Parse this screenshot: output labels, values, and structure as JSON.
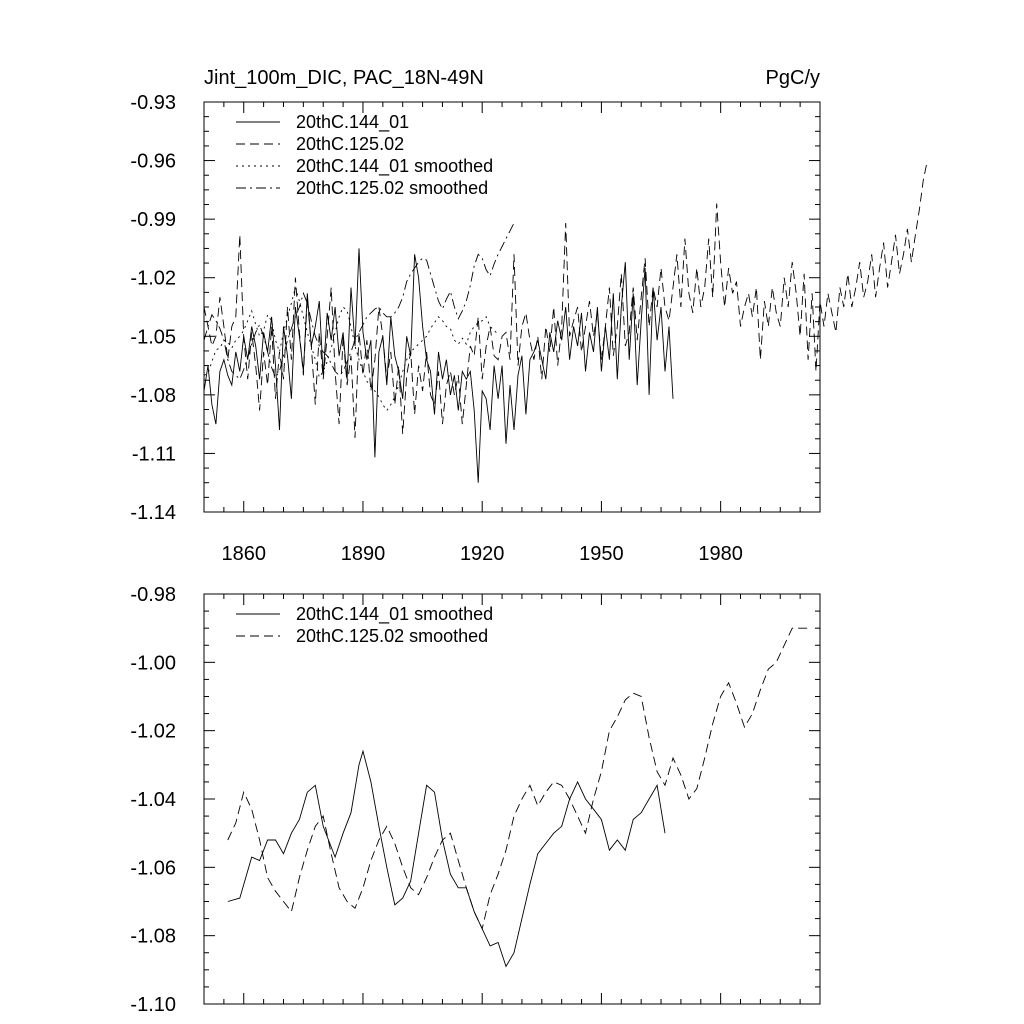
{
  "chart_data": [
    {
      "type": "line",
      "title_left": "Jint_100m_DIC, PAC_18N-49N",
      "title_right": "PgC/y",
      "xlim": [
        1850,
        2005
      ],
      "ylim": [
        -1.14,
        -0.93
      ],
      "x_ticks": [
        1860,
        1890,
        1920,
        1950,
        1980
      ],
      "x_tick_labels": [
        "1860",
        "1890",
        "1920",
        "1950",
        "1980"
      ],
      "y_ticks": [
        -0.93,
        -0.96,
        -0.99,
        -1.02,
        -1.05,
        -1.08,
        -1.11,
        -1.14
      ],
      "y_tick_labels": [
        "-0.93",
        "-0.96",
        "-0.99",
        "-1.02",
        "-1.05",
        "-1.08",
        "-1.11",
        "-1.14"
      ],
      "legend_location": "top-left",
      "series": [
        {
          "name": "20thC.144_01",
          "style": "solid",
          "x_start": 1850,
          "values": [
            -1.078,
            -1.065,
            -1.085,
            -1.095,
            -1.068,
            -1.062,
            -1.07,
            -1.075,
            -1.058,
            -1.068,
            -1.05,
            -1.062,
            -1.045,
            -1.055,
            -1.072,
            -1.048,
            -1.058,
            -1.04,
            -1.065,
            -1.098,
            -1.045,
            -1.06,
            -1.082,
            -1.035,
            -1.05,
            -1.068,
            -1.028,
            -1.055,
            -1.045,
            -1.032,
            -1.07,
            -1.038,
            -1.052,
            -1.035,
            -1.06,
            -1.048,
            -1.072,
            -1.025,
            -1.055,
            -1.005,
            -1.048,
            -1.062,
            -1.052,
            -1.112,
            -1.058,
            -1.05,
            -1.075,
            -1.04,
            -1.06,
            -1.068,
            -1.082,
            -1.05,
            -1.06,
            -1.008,
            -1.02,
            -1.045,
            -1.062,
            -1.068,
            -1.09,
            -1.058,
            -1.072,
            -1.062,
            -1.08,
            -1.07,
            -1.088,
            -1.068,
            -1.072,
            -1.068,
            -1.088,
            -1.125,
            -1.078,
            -1.082,
            -1.098,
            -1.065,
            -1.082,
            -1.065,
            -1.105,
            -1.075,
            -1.098,
            -1.07,
            -1.06,
            -1.09,
            -1.062,
            -1.058,
            -1.052,
            -1.062,
            -1.072,
            -1.048,
            -1.058,
            -1.042,
            -1.052,
            -1.035,
            -1.062,
            -1.045,
            -1.055,
            -1.038,
            -1.068,
            -1.048,
            -1.058,
            -1.035,
            -1.068,
            -1.045,
            -1.062,
            -1.028,
            -1.072,
            -1.035,
            -1.012,
            -1.062,
            -1.028,
            -1.075,
            -1.042,
            -1.015,
            -1.08,
            -1.025,
            -1.052,
            -1.035,
            -1.068,
            -1.045,
            -1.082
          ]
        },
        {
          "name": "20thC.125.02",
          "style": "dashed",
          "x_start": 1850,
          "values": [
            -1.035,
            -1.045,
            -1.055,
            -1.05,
            -1.03,
            -1.045,
            -1.062,
            -1.045,
            -1.04,
            -0.998,
            -1.05,
            -1.072,
            -1.048,
            -1.065,
            -1.088,
            -1.058,
            -1.075,
            -1.045,
            -1.082,
            -1.058,
            -1.072,
            -1.035,
            -1.062,
            -1.02,
            -1.048,
            -1.07,
            -1.03,
            -1.055,
            -1.085,
            -1.048,
            -1.072,
            -1.05,
            -1.025,
            -1.068,
            -1.095,
            -1.05,
            -1.075,
            -1.06,
            -1.102,
            -1.048,
            -1.07,
            -1.052,
            -1.078,
            -1.062,
            -1.035,
            -1.05,
            -1.072,
            -1.058,
            -1.085,
            -1.065,
            -1.1,
            -1.07,
            -1.058,
            -1.09,
            -1.065,
            -1.078,
            -1.058,
            -1.08,
            -1.085,
            -1.068,
            -1.095,
            -1.075,
            -1.068,
            -1.08,
            -1.07,
            -1.095,
            -1.075,
            -1.055,
            -1.06,
            -1.04,
            -1.072,
            -1.055,
            -1.045,
            -1.06,
            -1.062,
            -1.05,
            -1.048,
            -1.062,
            -1.008,
            -1.065,
            -1.045,
            -1.038,
            -1.052,
            -1.062,
            -1.05,
            -1.072,
            -1.045,
            -1.058,
            -1.035,
            -1.065,
            -1.045,
            -0.992,
            -1.05,
            -1.042,
            -1.035,
            -1.058,
            -1.045,
            -1.032,
            -1.05,
            -1.038,
            -1.062,
            -1.045,
            -1.025,
            -1.06,
            -1.045,
            -1.018,
            -1.055,
            -1.048,
            -1.025,
            -1.052,
            -1.03,
            -1.01,
            -1.045,
            -1.025,
            -1.035,
            -1.015,
            -1.035,
            -1.042,
            -1.025,
            -1.008,
            -1.035,
            -1.0,
            -1.028,
            -1.038,
            -1.015,
            -1.035,
            -1.025,
            -1.0,
            -1.03,
            -0.982,
            -1.012,
            -1.035,
            -1.015,
            -1.028,
            -1.022,
            -1.045,
            -1.035,
            -1.028,
            -1.04,
            -1.025,
            -1.062,
            -1.032,
            -1.045,
            -1.025,
            -1.038,
            -1.045,
            -1.02,
            -1.035,
            -1.012,
            -1.028,
            -1.05,
            -1.018,
            -1.062,
            -1.028,
            -1.068,
            -1.032,
            -1.045,
            -1.028,
            -1.038,
            -1.048,
            -1.025,
            -1.035,
            -1.018,
            -1.035,
            -1.025,
            -1.012,
            -1.03,
            -1.022,
            -1.008,
            -1.03,
            -1.015,
            -1.002,
            -1.025,
            -1.012,
            -0.998,
            -1.018,
            -1.008,
            -0.995,
            -1.012,
            -0.998,
            -0.985,
            -0.97,
            -0.96
          ]
        },
        {
          "name": "20thC.144_01 smoothed",
          "style": "dotted",
          "x_start": 1850,
          "values": [
            -1.07,
            -1.069,
            -1.063,
            -1.057,
            -1.056,
            -1.052,
            -1.053,
            -1.056,
            -1.052,
            -1.05,
            -1.047,
            -1.042,
            -1.037,
            -1.044,
            -1.05,
            -1.047,
            -1.039,
            -1.042,
            -1.052,
            -1.058,
            -1.048,
            -1.04,
            -1.033,
            -1.025,
            -1.032,
            -1.04,
            -1.048,
            -1.055,
            -1.062,
            -1.071,
            -1.068,
            -1.063,
            -1.056,
            -1.048,
            -1.04,
            -1.035,
            -1.037,
            -1.045,
            -1.055,
            -1.062,
            -1.068,
            -1.073,
            -1.076,
            -1.078,
            -1.081,
            -1.085,
            -1.088,
            -1.085,
            -1.081,
            -1.075,
            -1.068,
            -1.062,
            -1.058,
            -1.056,
            -1.054,
            -1.052,
            -1.05,
            -1.046,
            -1.043,
            -1.04,
            -1.042,
            -1.045,
            -1.046,
            -1.052,
            -1.054,
            -1.051,
            -1.054,
            -1.048,
            -1.045,
            -1.043,
            -1.042,
            -1.04,
            -1.045,
            -1.047,
            -1.049
          ]
        },
        {
          "name": "20thC.125.02 smoothed",
          "style": "dashdot",
          "x_start": 1850,
          "values": [
            -1.052,
            -1.045,
            -1.039,
            -1.042,
            -1.046,
            -1.052,
            -1.062,
            -1.068,
            -1.07,
            -1.072,
            -1.067,
            -1.061,
            -1.054,
            -1.048,
            -1.044,
            -1.05,
            -1.058,
            -1.066,
            -1.071,
            -1.068,
            -1.06,
            -1.052,
            -1.046,
            -1.04,
            -1.035,
            -1.028,
            -1.033,
            -1.042,
            -1.05,
            -1.055,
            -1.058,
            -1.06,
            -1.064,
            -1.068,
            -1.07,
            -1.068,
            -1.063,
            -1.058,
            -1.052,
            -1.048,
            -1.044,
            -1.04,
            -1.038,
            -1.036,
            -1.035,
            -1.038,
            -1.04,
            -1.04,
            -1.038,
            -1.035,
            -1.03,
            -1.022,
            -1.018,
            -1.015,
            -1.012,
            -1.01,
            -1.011,
            -1.018,
            -1.025,
            -1.032,
            -1.036,
            -1.031,
            -1.027,
            -1.035,
            -1.041,
            -1.037,
            -1.032,
            -1.024,
            -1.014,
            -1.008,
            -1.01,
            -1.016,
            -1.019,
            -1.013,
            -1.008,
            -1.004,
            -1.0,
            -0.996,
            -0.992
          ]
        }
      ]
    },
    {
      "type": "line",
      "xlim": [
        1850,
        2005
      ],
      "ylim": [
        -1.1,
        -0.98
      ],
      "y_ticks": [
        -0.98,
        -1.0,
        -1.02,
        -1.04,
        -1.06,
        -1.08,
        -1.1
      ],
      "y_tick_labels": [
        "-0.98",
        "-1.00",
        "-1.02",
        "-1.04",
        "-1.06",
        "-1.08",
        "-1.10"
      ],
      "legend_location": "top-left",
      "series": [
        {
          "name": "20thC.144_01 smoothed",
          "style": "solid",
          "x": [
            1856,
            1859,
            1862,
            1864,
            1866,
            1868,
            1870,
            1872,
            1874,
            1876,
            1878,
            1880,
            1883,
            1885,
            1887,
            1889,
            1890,
            1892,
            1894,
            1896,
            1898,
            1900,
            1902,
            1904,
            1906,
            1908,
            1910,
            1912,
            1914,
            1916,
            1918,
            1920,
            1922,
            1924,
            1926,
            1928,
            1930,
            1932,
            1934,
            1936,
            1938,
            1940,
            1942,
            1944,
            1946,
            1948,
            1950,
            1952,
            1954,
            1956,
            1958,
            1960,
            1962,
            1964,
            1966
          ],
          "values": [
            -1.07,
            -1.069,
            -1.057,
            -1.058,
            -1.052,
            -1.052,
            -1.056,
            -1.05,
            -1.046,
            -1.038,
            -1.036,
            -1.048,
            -1.057,
            -1.05,
            -1.044,
            -1.03,
            -1.026,
            -1.035,
            -1.048,
            -1.06,
            -1.071,
            -1.069,
            -1.064,
            -1.05,
            -1.036,
            -1.038,
            -1.052,
            -1.062,
            -1.066,
            -1.066,
            -1.073,
            -1.078,
            -1.083,
            -1.082,
            -1.089,
            -1.085,
            -1.075,
            -1.065,
            -1.056,
            -1.053,
            -1.05,
            -1.048,
            -1.04,
            -1.035,
            -1.04,
            -1.043,
            -1.046,
            -1.055,
            -1.052,
            -1.055,
            -1.046,
            -1.044,
            -1.04,
            -1.036,
            -1.05
          ]
        },
        {
          "name": "20thC.125.02 smoothed",
          "style": "dashed",
          "x": [
            1856,
            1858,
            1860,
            1862,
            1864,
            1866,
            1868,
            1870,
            1872,
            1874,
            1876,
            1878,
            1880,
            1882,
            1884,
            1886,
            1888,
            1890,
            1892,
            1894,
            1896,
            1898,
            1900,
            1902,
            1904,
            1906,
            1908,
            1910,
            1912,
            1914,
            1916,
            1918,
            1920,
            1922,
            1924,
            1926,
            1928,
            1930,
            1932,
            1934,
            1936,
            1938,
            1940,
            1942,
            1944,
            1946,
            1948,
            1950,
            1952,
            1954,
            1956,
            1958,
            1960,
            1962,
            1964,
            1966,
            1968,
            1970,
            1972,
            1974,
            1976,
            1978,
            1980,
            1982,
            1984,
            1986,
            1988,
            1990,
            1992,
            1994,
            1996,
            1998,
            2000,
            2002
          ],
          "values": [
            -1.052,
            -1.047,
            -1.038,
            -1.043,
            -1.052,
            -1.063,
            -1.067,
            -1.07,
            -1.073,
            -1.063,
            -1.055,
            -1.048,
            -1.045,
            -1.056,
            -1.066,
            -1.07,
            -1.072,
            -1.066,
            -1.058,
            -1.052,
            -1.048,
            -1.053,
            -1.06,
            -1.066,
            -1.068,
            -1.063,
            -1.057,
            -1.052,
            -1.05,
            -1.058,
            -1.066,
            -1.073,
            -1.078,
            -1.068,
            -1.062,
            -1.055,
            -1.045,
            -1.04,
            -1.036,
            -1.042,
            -1.038,
            -1.035,
            -1.036,
            -1.04,
            -1.045,
            -1.05,
            -1.04,
            -1.032,
            -1.02,
            -1.016,
            -1.011,
            -1.009,
            -1.01,
            -1.022,
            -1.032,
            -1.036,
            -1.028,
            -1.033,
            -1.04,
            -1.037,
            -1.028,
            -1.018,
            -1.01,
            -1.006,
            -1.012,
            -1.019,
            -1.015,
            -1.008,
            -1.002,
            -1.0,
            -0.995,
            -0.99,
            -0.99,
            -0.99
          ]
        }
      ]
    }
  ]
}
